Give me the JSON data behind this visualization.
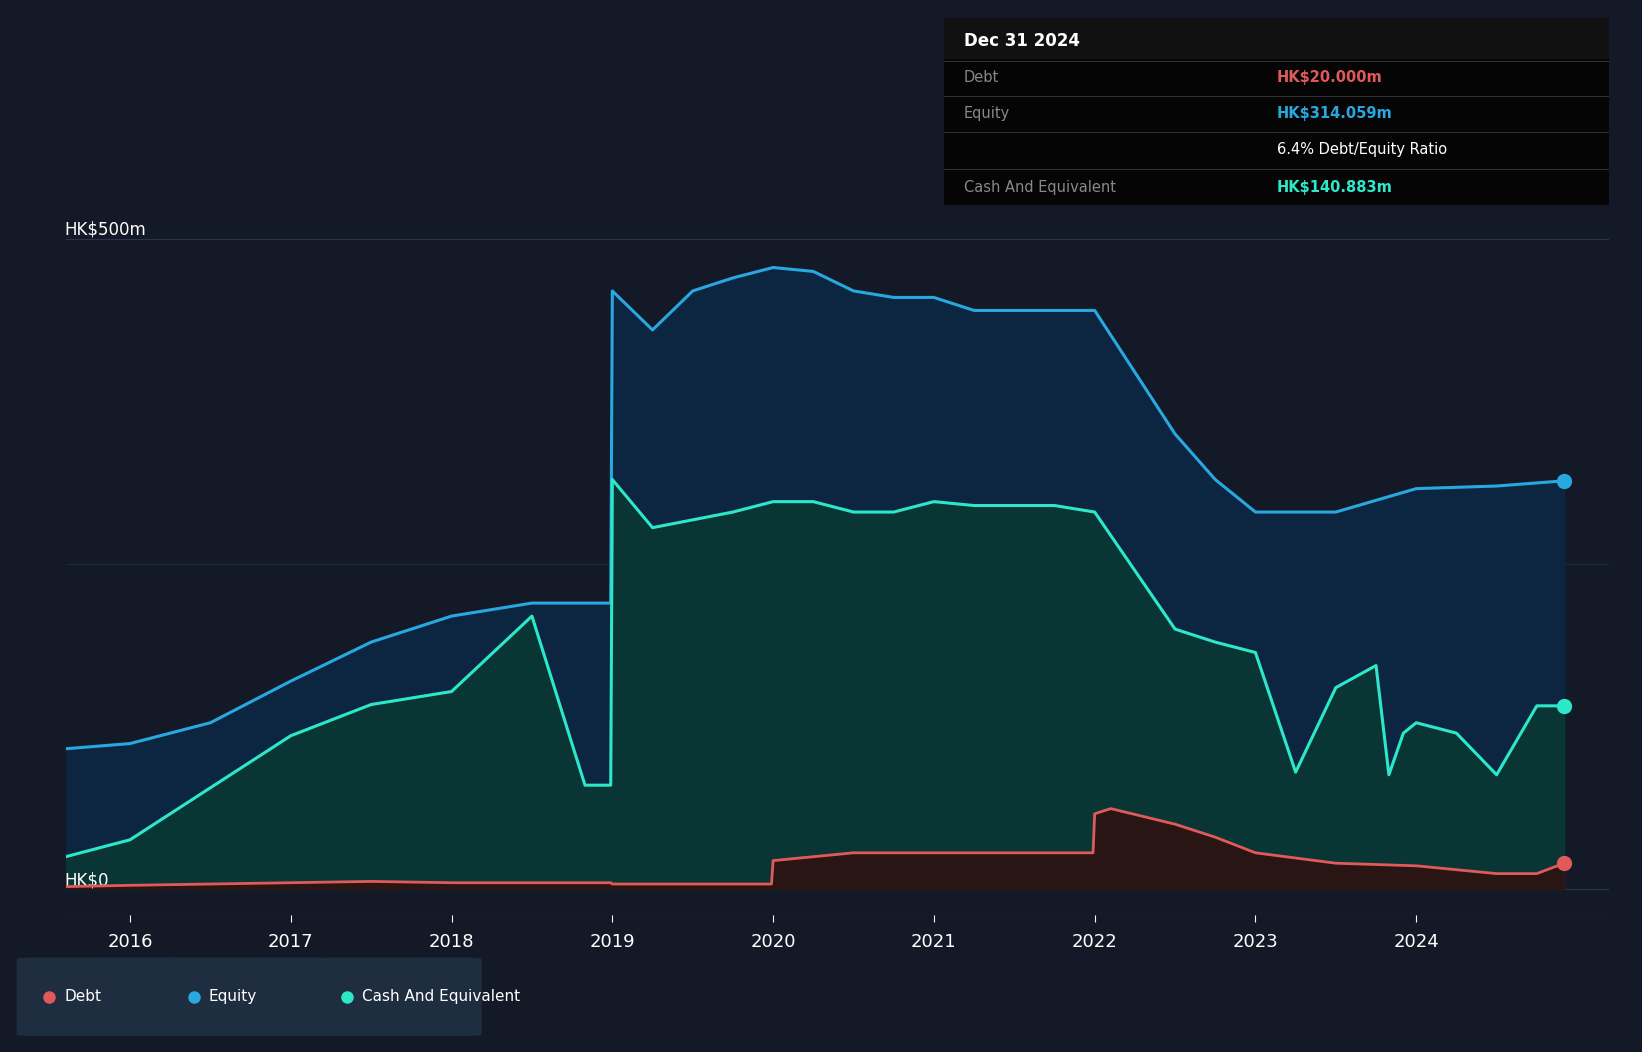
{
  "bg_color": "#131926",
  "plot_bg_color": "#131926",
  "grid_color": "#2a3550",
  "equity_color": "#29a8e0",
  "cash_color": "#2de8c8",
  "debt_color": "#e05a5a",
  "tooltip_bg": "#000000",
  "tooltip_title": "Dec 31 2024",
  "tooltip_debt_label": "Debt",
  "tooltip_debt_value": "HK$20.000m",
  "tooltip_equity_label": "Equity",
  "tooltip_equity_value": "HK$314.059m",
  "tooltip_ratio": "6.4% Debt/Equity Ratio",
  "tooltip_cash_label": "Cash And Equivalent",
  "tooltip_cash_value": "HK$140.883m",
  "legend_items": [
    "Debt",
    "Equity",
    "Cash And Equivalent"
  ],
  "legend_colors": [
    "#e05a5a",
    "#29a8e0",
    "#2de8c8"
  ],
  "y_label_top": "HK$500m",
  "y_label_bottom": "HK$0",
  "x_ticks": [
    2016,
    2017,
    2018,
    2019,
    2020,
    2021,
    2022,
    2023,
    2024
  ],
  "ylim_min": -20,
  "ylim_max": 530,
  "xlim_min": 2015.6,
  "xlim_max": 2025.2,
  "equity_x": [
    2015.6,
    2016.0,
    2016.5,
    2017.0,
    2017.5,
    2018.0,
    2018.5,
    2018.83,
    2018.99,
    2019.0,
    2019.25,
    2019.5,
    2019.75,
    2020.0,
    2020.25,
    2020.5,
    2020.75,
    2021.0,
    2021.25,
    2021.5,
    2021.75,
    2022.0,
    2022.5,
    2022.75,
    2023.0,
    2023.5,
    2024.0,
    2024.5,
    2024.92
  ],
  "equity_y": [
    108,
    112,
    128,
    160,
    190,
    210,
    220,
    220,
    220,
    460,
    430,
    460,
    470,
    478,
    475,
    460,
    455,
    455,
    445,
    445,
    445,
    445,
    350,
    315,
    290,
    290,
    308,
    310,
    314
  ],
  "cash_x": [
    2015.6,
    2016.0,
    2016.5,
    2017.0,
    2017.5,
    2018.0,
    2018.5,
    2018.83,
    2018.99,
    2019.0,
    2019.25,
    2019.75,
    2020.0,
    2020.25,
    2020.5,
    2020.75,
    2021.0,
    2021.25,
    2021.5,
    2021.75,
    2022.0,
    2022.5,
    2022.75,
    2023.0,
    2023.25,
    2023.5,
    2023.75,
    2023.83,
    2023.92,
    2024.0,
    2024.25,
    2024.5,
    2024.75,
    2024.92
  ],
  "cash_y": [
    25,
    38,
    78,
    118,
    142,
    152,
    210,
    80,
    80,
    315,
    278,
    290,
    298,
    298,
    290,
    290,
    298,
    295,
    295,
    295,
    290,
    200,
    190,
    182,
    90,
    155,
    172,
    88,
    120,
    128,
    120,
    88,
    141,
    141
  ],
  "debt_x": [
    2015.6,
    2016.0,
    2016.5,
    2017.0,
    2017.5,
    2018.0,
    2018.5,
    2018.99,
    2019.0,
    2019.5,
    2019.99,
    2020.0,
    2020.5,
    2020.99,
    2021.0,
    2021.5,
    2021.99,
    2022.0,
    2022.1,
    2022.5,
    2022.75,
    2023.0,
    2023.5,
    2024.0,
    2024.5,
    2024.75,
    2024.92
  ],
  "debt_y": [
    2,
    3,
    4,
    5,
    6,
    5,
    5,
    5,
    4,
    4,
    4,
    22,
    28,
    28,
    28,
    28,
    28,
    58,
    62,
    50,
    40,
    28,
    20,
    18,
    12,
    12,
    20
  ]
}
